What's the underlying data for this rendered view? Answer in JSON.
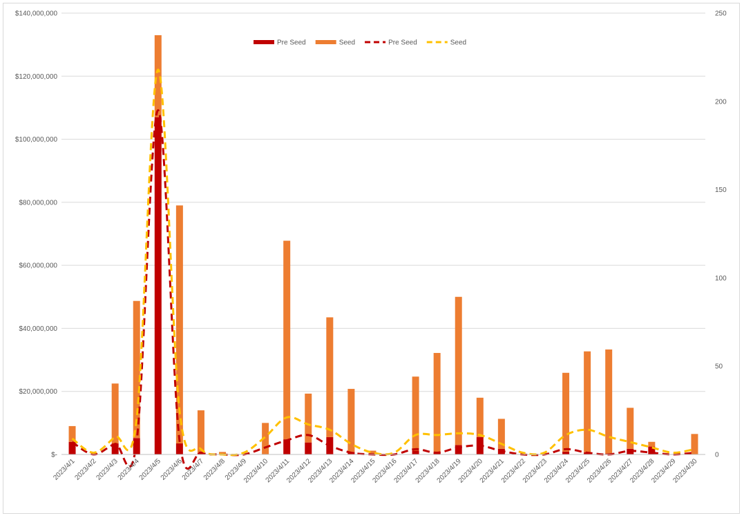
{
  "chart_data": {
    "type": "bar",
    "title": "",
    "xlabel": "",
    "ylabel": "",
    "y2label": "",
    "categories": [
      "2023/4/1",
      "2023/4/2",
      "2023/4/3",
      "2023/4/4",
      "2023/4/5",
      "2023/4/6",
      "2023/4/7",
      "2023/4/8",
      "2023/4/9",
      "2023/4/10",
      "2023/4/11",
      "2023/4/12",
      "2023/4/13",
      "2023/4/14",
      "2023/4/15",
      "2023/4/16",
      "2023/4/17",
      "2023/4/18",
      "2023/4/19",
      "2023/4/20",
      "2023/4/21",
      "2023/4/22",
      "2023/4/23",
      "2023/4/24",
      "2023/4/25",
      "2023/4/26",
      "2023/4/27",
      "2023/4/28",
      "2023/4/29",
      "2023/4/30"
    ],
    "ylim": [
      0,
      140000000
    ],
    "y2lim": [
      0,
      250
    ],
    "y_ticks": [
      "$-",
      "$20,000,000",
      "$40,000,000",
      "$60,000,000",
      "$80,000,000",
      "$100,000,000",
      "$120,000,000",
      "$140,000,000"
    ],
    "y2_ticks": [
      "0",
      "50",
      "100",
      "150",
      "200",
      "250"
    ],
    "stacked": true,
    "grid": true,
    "legend_position": "top",
    "series": [
      {
        "name": "Pre Seed",
        "kind": "bar",
        "axis": "left",
        "color": "#c00000",
        "values": [
          4000000,
          0,
          3500000,
          5200000,
          107000000,
          3500000,
          500000,
          0,
          0,
          0,
          4800000,
          3800000,
          5500000,
          800000,
          0,
          0,
          1200000,
          700000,
          3000000,
          5500000,
          1800000,
          0,
          0,
          900000,
          700000,
          300000,
          1800000,
          2500000,
          0,
          0
        ]
      },
      {
        "name": "Seed",
        "kind": "bar",
        "axis": "left",
        "color": "#ed7d31",
        "values": [
          5000000,
          0,
          19000000,
          43500000,
          26000000,
          75500000,
          13500000,
          800000,
          0,
          10000000,
          63000000,
          15500000,
          38000000,
          20000000,
          1200000,
          0,
          23500000,
          31500000,
          47000000,
          12500000,
          9500000,
          0,
          0,
          25000000,
          32000000,
          33000000,
          13000000,
          1500000,
          0,
          6500000
        ]
      },
      {
        "name": "Pre Seed",
        "kind": "line",
        "axis": "right",
        "color": "#c00000",
        "values": [
          7,
          0,
          6,
          7,
          195,
          8,
          1,
          0,
          0,
          4,
          8,
          11,
          5,
          1,
          0,
          0,
          3,
          1,
          4,
          5,
          2,
          0,
          0,
          3,
          1,
          0,
          2,
          1,
          0,
          1
        ]
      },
      {
        "name": "Seed",
        "kind": "line",
        "axis": "right",
        "color": "#ffc000",
        "values": [
          9,
          1,
          10,
          20,
          218,
          25,
          3,
          0,
          1,
          10,
          21,
          17,
          14,
          6,
          1,
          1,
          11,
          11,
          12,
          11,
          6,
          1,
          1,
          11,
          14,
          10,
          7,
          4,
          1,
          3
        ]
      }
    ]
  }
}
